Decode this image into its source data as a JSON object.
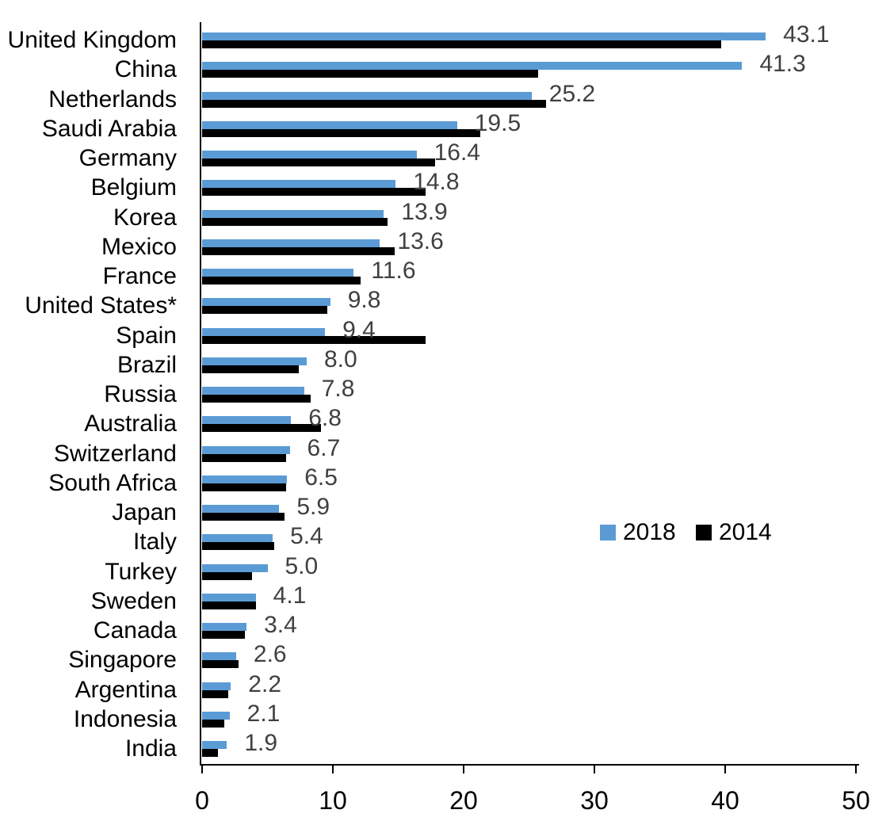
{
  "chart_data": {
    "type": "bar",
    "orientation": "horizontal",
    "title": "",
    "xlabel": "",
    "ylabel": "",
    "xlim": [
      0,
      50
    ],
    "x_ticks": [
      "0",
      "10",
      "20",
      "30",
      "40",
      "50"
    ],
    "grid": false,
    "legend_position": "middle-right",
    "label_color": "#404040",
    "axis_color": "#000000",
    "categories": [
      "United Kingdom",
      "China",
      "Netherlands",
      "Saudi Arabia",
      "Germany",
      "Belgium",
      "Korea",
      "Mexico",
      "France",
      "United States*",
      "Spain",
      "Brazil",
      "Russia",
      "Australia",
      "Switzerland",
      "South Africa",
      "Japan",
      "Italy",
      "Turkey",
      "Sweden",
      "Canada",
      "Singapore",
      "Argentina",
      "Indonesia",
      "India"
    ],
    "series": [
      {
        "name": "2018",
        "color": "#5B9BD5",
        "values": [
          43.1,
          41.3,
          25.2,
          19.5,
          16.4,
          14.8,
          13.9,
          13.6,
          11.6,
          9.8,
          9.4,
          8.0,
          7.8,
          6.8,
          6.7,
          6.5,
          5.9,
          5.4,
          5.0,
          4.1,
          3.4,
          2.6,
          2.2,
          2.1,
          1.9
        ],
        "data_labels": [
          "43.1",
          "41.3",
          "25.2",
          "19.5",
          "16.4",
          "14.8",
          "13.9",
          "13.6",
          "11.6",
          "9.8",
          "9.4",
          "8.0",
          "7.8",
          "6.8",
          "6.7",
          "6.5",
          "5.9",
          "5.4",
          "5.0",
          "4.1",
          "3.4",
          "2.6",
          "2.2",
          "2.1",
          "1.9"
        ]
      },
      {
        "name": "2014",
        "color": "#000000",
        "values": [
          39.7,
          25.7,
          26.3,
          21.3,
          17.8,
          17.1,
          14.2,
          14.7,
          12.1,
          9.6,
          17.1,
          7.4,
          8.3,
          9.1,
          6.4,
          6.4,
          6.3,
          5.5,
          3.8,
          4.1,
          3.3,
          2.8,
          2.0,
          1.7,
          1.2
        ]
      }
    ],
    "legend": {
      "entries": [
        "2018",
        "2014"
      ]
    }
  }
}
